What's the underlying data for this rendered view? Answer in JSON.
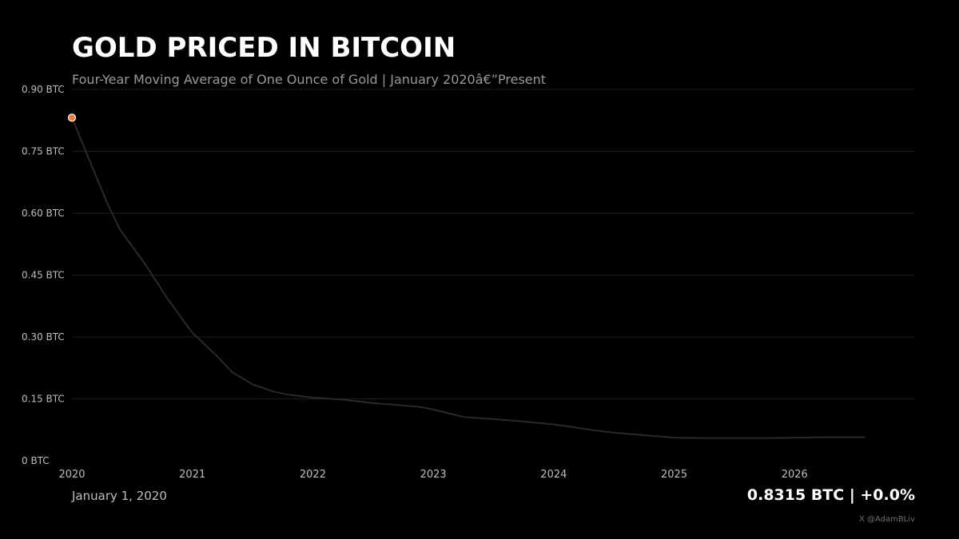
{
  "chart_data": {
    "type": "line",
    "title": "GOLD PRICED IN BITCOIN",
    "subtitle": "Four-Year Moving Average of One Ounce of Gold | January 2020â€”Present",
    "xlabel": "",
    "ylabel": "",
    "xlim": [
      2020.0,
      2027.0
    ],
    "ylim": [
      0,
      0.9
    ],
    "x_ticks": [
      2020,
      2021,
      2022,
      2023,
      2024,
      2025,
      2026
    ],
    "x_tick_labels": [
      "2020",
      "2021",
      "2022",
      "2023",
      "2024",
      "2025",
      "2026"
    ],
    "y_ticks": [
      0,
      0.15,
      0.3,
      0.45,
      0.6,
      0.75,
      0.9
    ],
    "y_tick_labels": [
      "0 BTC",
      "0.15 BTC",
      "0.30 BTC",
      "0.45 BTC",
      "0.60 BTC",
      "0.75 BTC",
      "0.90 BTC"
    ],
    "grid": true,
    "legend": "none",
    "series": [
      {
        "color": "#2a2a2a",
        "x": [
          2020.0,
          2020.1,
          2020.2,
          2020.3,
          2020.4,
          2020.6,
          2020.8,
          2021.0,
          2021.2,
          2021.33,
          2021.5,
          2021.67,
          2021.8,
          2022.0,
          2022.25,
          2022.5,
          2022.75,
          2022.9,
          2023.0,
          2023.1,
          2023.25,
          2023.5,
          2023.75,
          2024.0,
          2024.2,
          2024.33,
          2024.5,
          2024.75,
          2025.0,
          2025.25,
          2025.5,
          2025.75,
          2026.0,
          2026.25,
          2026.58
        ],
        "y": [
          0.8315,
          0.76,
          0.69,
          0.62,
          0.56,
          0.48,
          0.39,
          0.31,
          0.255,
          0.215,
          0.185,
          0.168,
          0.16,
          0.153,
          0.148,
          0.14,
          0.134,
          0.13,
          0.124,
          0.117,
          0.106,
          0.101,
          0.095,
          0.088,
          0.08,
          0.074,
          0.068,
          0.062,
          0.056,
          0.055,
          0.055,
          0.055,
          0.056,
          0.057,
          0.057
        ]
      }
    ],
    "marker": {
      "x": 2020.0,
      "y": 0.8315,
      "color": "#f07a3a"
    }
  },
  "footer": {
    "date": "January 1, 2020",
    "readout": "0.8315 BTC  |  +0.0%",
    "credit": "X @AdamBLiv"
  },
  "colors": {
    "background": "#000000",
    "grid": "#1e1e1e",
    "tick_text": "#bdbdbd",
    "line": "#2a2a2a",
    "marker": "#f07a3a"
  }
}
